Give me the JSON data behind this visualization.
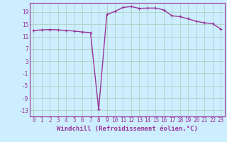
{
  "x": [
    0,
    1,
    2,
    3,
    4,
    5,
    6,
    7,
    8,
    9,
    10,
    11,
    12,
    13,
    14,
    15,
    16,
    17,
    18,
    19,
    20,
    21,
    22,
    23
  ],
  "y": [
    13.0,
    13.2,
    13.3,
    13.2,
    13.0,
    12.8,
    12.5,
    12.3,
    -12.8,
    18.2,
    19.2,
    20.5,
    20.8,
    20.2,
    20.3,
    20.3,
    19.7,
    17.8,
    17.5,
    16.8,
    16.0,
    15.5,
    15.2,
    13.5
  ],
  "line_color": "#993399",
  "marker": "+",
  "markersize": 3,
  "linewidth": 1.0,
  "bg_color": "#cceeff",
  "grid_color": "#aaccbb",
  "xlabel": "Windchill (Refroidissement éolien,°C)",
  "xlabel_fontsize": 6.5,
  "yticks": [
    -13,
    -9,
    -5,
    -1,
    3,
    7,
    11,
    15,
    19
  ],
  "xticks": [
    0,
    1,
    2,
    3,
    4,
    5,
    6,
    7,
    8,
    9,
    10,
    11,
    12,
    13,
    14,
    15,
    16,
    17,
    18,
    19,
    20,
    21,
    22,
    23
  ],
  "ylim": [
    -15,
    22
  ],
  "xlim": [
    -0.5,
    23.5
  ],
  "tick_fontsize": 5.5,
  "tick_color": "#993399",
  "label_color": "#993399",
  "spine_color": "#993399"
}
